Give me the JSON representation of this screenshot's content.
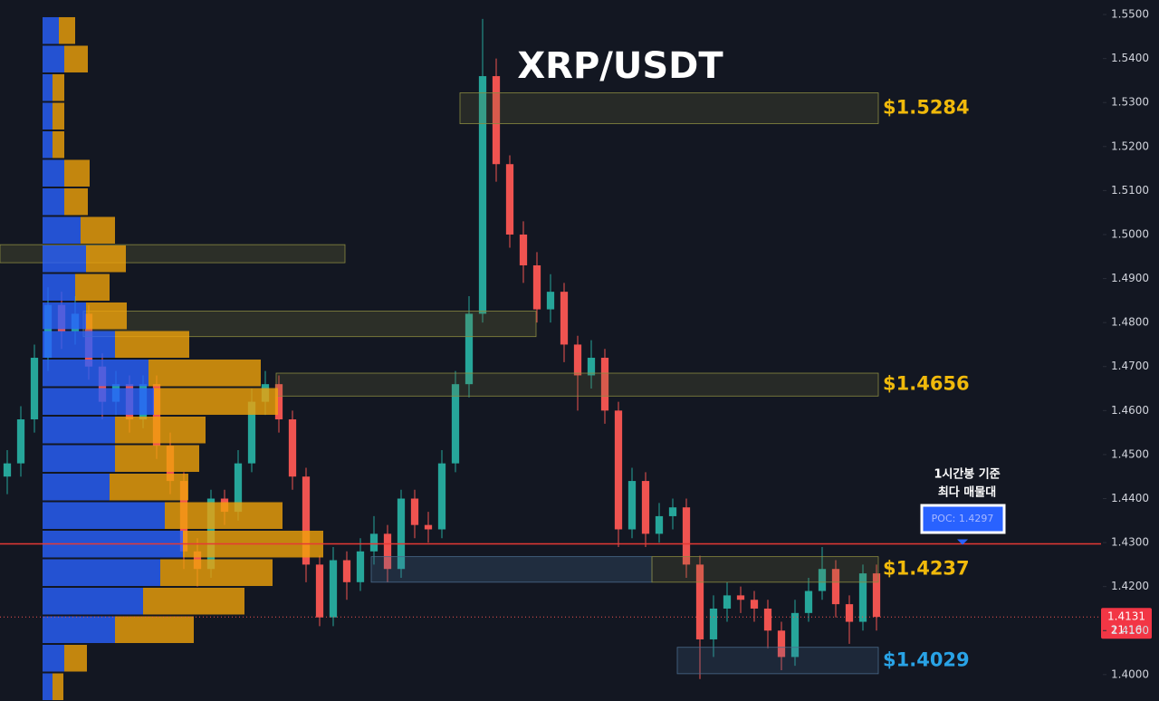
{
  "chart_data": {
    "type": "candlestick",
    "title": "XRP/USDT",
    "ylim": [
      1.394,
      1.5533
    ],
    "yticks": [
      {
        "value": 1.4,
        "label": "1.4000"
      },
      {
        "value": 1.41,
        "label": "1.4100"
      },
      {
        "value": 1.42,
        "label": "1.4200"
      },
      {
        "value": 1.43,
        "label": "1.4300"
      },
      {
        "value": 1.44,
        "label": "1.4400"
      },
      {
        "value": 1.45,
        "label": "1.4500"
      },
      {
        "value": 1.46,
        "label": "1.4600"
      },
      {
        "value": 1.47,
        "label": "1.4700"
      },
      {
        "value": 1.48,
        "label": "1.4800"
      },
      {
        "value": 1.49,
        "label": "1.4900"
      },
      {
        "value": 1.5,
        "label": "1.5000"
      },
      {
        "value": 1.51,
        "label": "1.5100"
      },
      {
        "value": 1.52,
        "label": "1.5200"
      },
      {
        "value": 1.53,
        "label": "1.5300"
      },
      {
        "value": 1.54,
        "label": "1.5400"
      },
      {
        "value": 1.55,
        "label": "1.5500"
      }
    ],
    "up_color": "#26a69a",
    "down_color": "#ef5350",
    "open": [
      1.445,
      1.448,
      1.458,
      1.472,
      1.484,
      1.478,
      1.482,
      1.47,
      1.462,
      1.466,
      1.458,
      1.466,
      1.452,
      1.444,
      1.428,
      1.424,
      1.44,
      1.437,
      1.448,
      1.462,
      1.466,
      1.458,
      1.445,
      1.425,
      1.413,
      1.426,
      1.421,
      1.428,
      1.432,
      1.424,
      1.44,
      1.434,
      1.433,
      1.448,
      1.466,
      1.482,
      1.536,
      1.516,
      1.5,
      1.493,
      1.483,
      1.487,
      1.475,
      1.468,
      1.472,
      1.46,
      1.433,
      1.444,
      1.432,
      1.436,
      1.438,
      1.425,
      1.408,
      1.415,
      1.418,
      1.417,
      1.415,
      1.41,
      1.404,
      1.414,
      1.419,
      1.424,
      1.416,
      1.412,
      1.423
    ],
    "high": [
      1.451,
      1.461,
      1.475,
      1.488,
      1.487,
      1.486,
      1.484,
      1.473,
      1.469,
      1.468,
      1.468,
      1.468,
      1.455,
      1.446,
      1.431,
      1.442,
      1.442,
      1.451,
      1.465,
      1.469,
      1.468,
      1.46,
      1.447,
      1.427,
      1.429,
      1.428,
      1.431,
      1.436,
      1.434,
      1.442,
      1.442,
      1.437,
      1.451,
      1.469,
      1.486,
      1.549,
      1.54,
      1.518,
      1.503,
      1.496,
      1.491,
      1.489,
      1.477,
      1.476,
      1.474,
      1.462,
      1.447,
      1.446,
      1.439,
      1.44,
      1.44,
      1.427,
      1.418,
      1.421,
      1.42,
      1.419,
      1.417,
      1.412,
      1.417,
      1.422,
      1.429,
      1.426,
      1.418,
      1.425,
      1.425
    ],
    "low": [
      1.441,
      1.445,
      1.455,
      1.469,
      1.474,
      1.475,
      1.467,
      1.458,
      1.459,
      1.455,
      1.456,
      1.449,
      1.441,
      1.424,
      1.42,
      1.422,
      1.434,
      1.435,
      1.446,
      1.459,
      1.455,
      1.442,
      1.421,
      1.411,
      1.411,
      1.417,
      1.419,
      1.425,
      1.421,
      1.422,
      1.431,
      1.43,
      1.431,
      1.446,
      1.463,
      1.48,
      1.512,
      1.497,
      1.489,
      1.48,
      1.48,
      1.471,
      1.46,
      1.465,
      1.457,
      1.429,
      1.431,
      1.429,
      1.43,
      1.433,
      1.422,
      1.399,
      1.404,
      1.412,
      1.414,
      1.412,
      1.406,
      1.401,
      1.402,
      1.412,
      1.417,
      1.413,
      1.407,
      1.41,
      1.41
    ],
    "close": [
      1.448,
      1.458,
      1.472,
      1.484,
      1.478,
      1.482,
      1.47,
      1.462,
      1.466,
      1.458,
      1.466,
      1.452,
      1.444,
      1.428,
      1.424,
      1.44,
      1.437,
      1.448,
      1.462,
      1.466,
      1.458,
      1.445,
      1.425,
      1.413,
      1.426,
      1.421,
      1.428,
      1.432,
      1.424,
      1.44,
      1.434,
      1.433,
      1.448,
      1.466,
      1.482,
      1.536,
      1.516,
      1.5,
      1.493,
      1.483,
      1.487,
      1.475,
      1.468,
      1.472,
      1.46,
      1.433,
      1.444,
      1.432,
      1.436,
      1.438,
      1.425,
      1.408,
      1.415,
      1.418,
      1.417,
      1.415,
      1.41,
      1.404,
      1.414,
      1.419,
      1.424,
      1.416,
      1.412,
      1.423,
      1.4131
    ],
    "volume_profile": {
      "price_range": [
        1.394,
        1.5496
      ],
      "buy_color": "#2962ff",
      "sell_color": "#f0a30a",
      "buy": [
        18,
        24,
        11,
        11,
        11,
        24,
        24,
        42,
        48,
        36,
        48,
        80,
        117,
        123,
        80,
        80,
        74,
        135,
        155,
        130,
        111,
        80,
        24,
        11
      ],
      "sell": [
        18,
        26,
        13,
        13,
        13,
        28,
        26,
        38,
        44,
        38,
        45,
        82,
        124,
        137,
        100,
        93,
        87,
        130,
        155,
        124,
        112,
        87,
        25,
        12
      ]
    },
    "levels": [
      {
        "label": "$1.5284",
        "low": 1.5252,
        "high": 1.5322,
        "color": "#f0b90b"
      },
      {
        "label": "$1.4656",
        "low": 1.4633,
        "high": 1.4685,
        "color": "#f0b90b"
      },
      {
        "label": "$1.4237",
        "low": 1.421,
        "high": 1.4268,
        "color": "#f0b90b"
      },
      {
        "label": "$1.4029",
        "low": 1.4002,
        "high": 1.4062,
        "color": "#29a3e6"
      }
    ],
    "zones": [
      {
        "low": 1.4936,
        "high": 1.4977
      },
      {
        "low": 1.4768,
        "high": 1.4826
      },
      {
        "low": 1.421,
        "high": 1.4268
      }
    ],
    "poc": {
      "value": 1.4297,
      "label": "POC: 1.4297",
      "color": "#e53935"
    },
    "annotation": [
      "1시간봉 기준",
      "최다 매물대"
    ],
    "last_price": {
      "value": 1.4131,
      "label": "1.4131",
      "timer": "21:16"
    }
  }
}
